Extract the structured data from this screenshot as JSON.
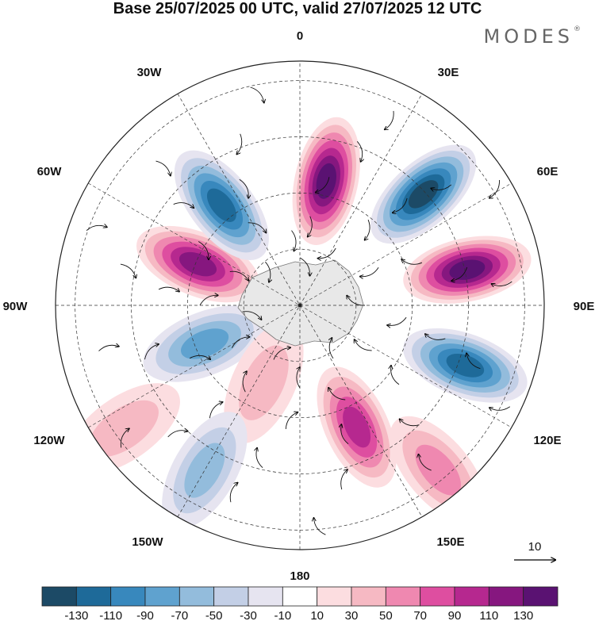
{
  "title": "Base 25/07/2025 00 UTC, valid 27/07/2025 12 UTC",
  "brand": "MODES",
  "brand_mark": "®",
  "longitude_labels": {
    "lon_0": "0",
    "lon_30e": "30E",
    "lon_60e": "60E",
    "lon_90e": "90E",
    "lon_120e": "120E",
    "lon_150e": "150E",
    "lon_180": "180",
    "lon_150w": "150W",
    "lon_120w": "120W",
    "lon_90w": "90W",
    "lon_60w": "60W",
    "lon_30w": "30W"
  },
  "vector_reference": {
    "value": "10"
  },
  "colorbar": {
    "colors": [
      "#1c4a66",
      "#1e6a99",
      "#3888bd",
      "#5fa2cf",
      "#93bcdc",
      "#c3cfe6",
      "#e6e4f0",
      "#ffffff",
      "#fcdde0",
      "#f6b9c3",
      "#ef88b0",
      "#de4ea0",
      "#b6288f",
      "#86177f",
      "#5a1272"
    ],
    "tick_labels": [
      "-130",
      "-110",
      "-90",
      "-70",
      "-50",
      "-30",
      "-10",
      "10",
      "30",
      "50",
      "70",
      "90",
      "110",
      "130"
    ]
  },
  "anomaly_features": [
    {
      "lon": 12,
      "lat_frac": 0.52,
      "value": 130
    },
    {
      "lon": 48,
      "lat_frac": 0.68,
      "value": -130
    },
    {
      "lon": 78,
      "lat_frac": 0.7,
      "value": 130
    },
    {
      "lon": 110,
      "lat_frac": 0.72,
      "value": -110
    },
    {
      "lon": 155,
      "lat_frac": 0.55,
      "value": 90
    },
    {
      "lon": 140,
      "lat_frac": 0.88,
      "value": 50
    },
    {
      "lon": -68,
      "lat_frac": 0.45,
      "value": 110
    },
    {
      "lon": -38,
      "lat_frac": 0.52,
      "value": -110
    },
    {
      "lon": -112,
      "lat_frac": 0.42,
      "value": -70
    },
    {
      "lon": -155,
      "lat_frac": 0.35,
      "value": 30
    },
    {
      "lon": -150,
      "lat_frac": 0.78,
      "value": -50
    },
    {
      "lon": -125,
      "lat_frac": 0.88,
      "value": 30
    }
  ]
}
